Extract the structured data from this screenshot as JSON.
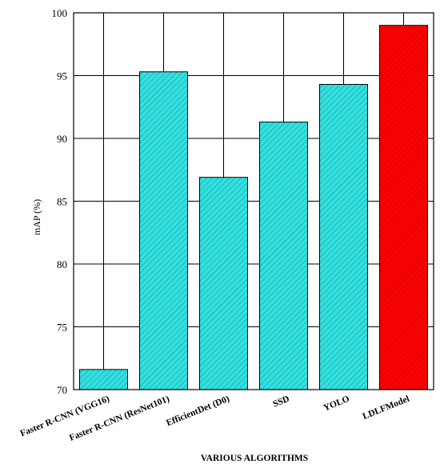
{
  "chart_data": {
    "type": "bar",
    "categories": [
      "Faster R-CNN (VGG16)",
      "Faster R-CNN (ResNet101)",
      "EfficientDet (D0)",
      "SSD",
      "YOLO",
      "LDLFModel"
    ],
    "values": [
      71.6,
      95.3,
      86.9,
      91.3,
      94.3,
      99.0
    ],
    "colors": [
      "#33e0e0",
      "#33e0e0",
      "#33e0e0",
      "#33e0e0",
      "#33e0e0",
      "#ff0000"
    ],
    "xlabel": "VARIOUS ALGORITHMS",
    "ylabel": "mAP (%)",
    "ylim": [
      70,
      100
    ],
    "yticks": [
      70,
      75,
      80,
      85,
      90,
      95,
      100
    ],
    "grid": true
  }
}
